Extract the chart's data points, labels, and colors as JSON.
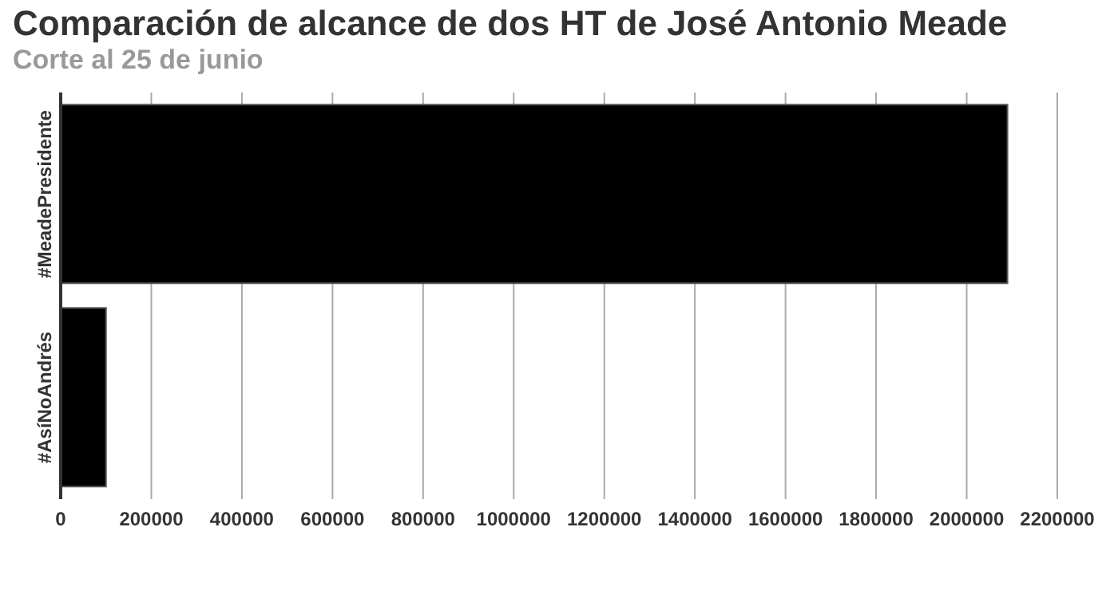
{
  "chart_data": {
    "type": "bar",
    "orientation": "horizontal",
    "title": "Comparación de alcance de dos HT de José Antonio Meade",
    "subtitle": "Corte al 25 de junio",
    "categories": [
      "#MeadePresidente",
      "#AsíNoAndrés"
    ],
    "values": [
      2090000,
      100000
    ],
    "color": "#000000",
    "xlim": [
      0,
      2200000
    ],
    "xticks": [
      0,
      200000,
      400000,
      600000,
      800000,
      1000000,
      1200000,
      1400000,
      1600000,
      1800000,
      2000000,
      2200000
    ],
    "grid": "x"
  }
}
